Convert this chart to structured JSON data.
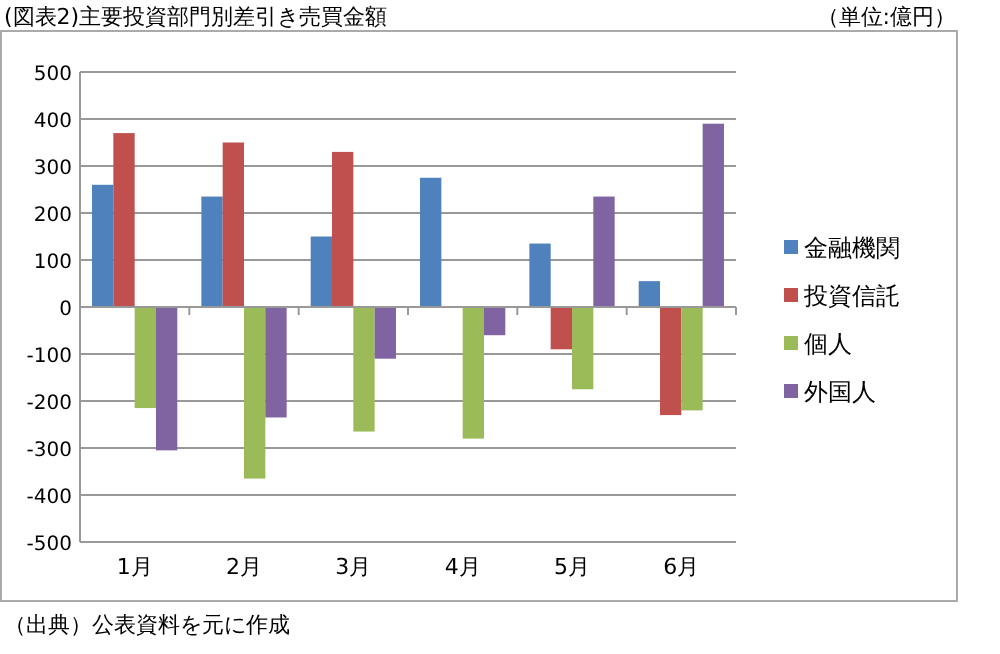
{
  "chart_data": {
    "type": "bar",
    "title": "(図表2)主要投資部門別差引き売買金額",
    "subtitle": "（単位:億円）",
    "categories": [
      "1月",
      "2月",
      "3月",
      "4月",
      "5月",
      "6月"
    ],
    "series": [
      {
        "name": "金融機関",
        "color": "#4f81bd",
        "values": [
          260,
          235,
          150,
          275,
          135,
          55
        ]
      },
      {
        "name": "投資信託",
        "color": "#c0504d",
        "values": [
          370,
          350,
          330,
          0,
          -90,
          -230
        ]
      },
      {
        "name": "個人",
        "color": "#9bbb59",
        "values": [
          -215,
          -365,
          -265,
          -280,
          -175,
          -220
        ]
      },
      {
        "name": "外国人",
        "color": "#8064a2",
        "values": [
          -305,
          -235,
          -110,
          -60,
          235,
          390
        ]
      }
    ],
    "ylim": [
      -500,
      500
    ],
    "yticks": [
      -500,
      -400,
      -300,
      -200,
      -100,
      0,
      100,
      200,
      300,
      400,
      500
    ],
    "grid": "y",
    "legend": "right",
    "annotations": [
      "（出典）公表資料を元に作成"
    ]
  }
}
